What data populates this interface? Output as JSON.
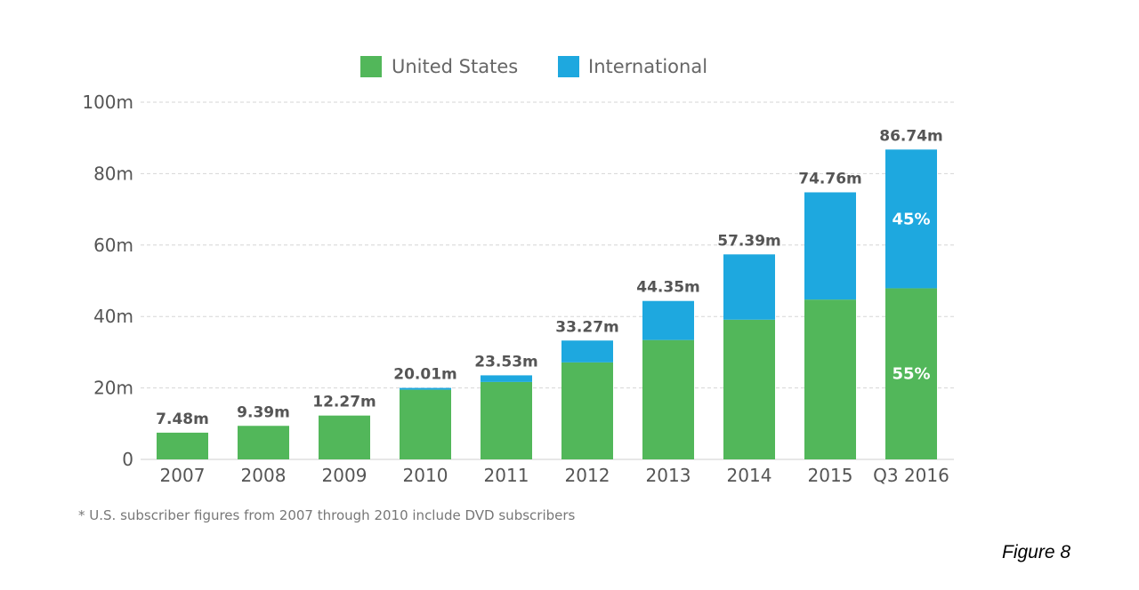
{
  "chart_data": {
    "type": "bar",
    "stacked": true,
    "categories": [
      "2007",
      "2008",
      "2009",
      "2010",
      "2011",
      "2012",
      "2013",
      "2014",
      "2015",
      "Q3 2016"
    ],
    "series": [
      {
        "name": "United States",
        "color": "#52b75a",
        "values": [
          7.48,
          9.39,
          12.27,
          19.5,
          21.67,
          27.15,
          33.42,
          39.11,
          44.74,
          47.9
        ]
      },
      {
        "name": "International",
        "color": "#1ea8df",
        "values": [
          0,
          0,
          0,
          0.51,
          1.86,
          6.12,
          10.93,
          18.28,
          30.02,
          38.84
        ]
      }
    ],
    "totals": [
      7.48,
      9.39,
      12.27,
      20.01,
      23.53,
      33.27,
      44.35,
      57.39,
      74.76,
      86.74
    ],
    "total_labels": [
      "7.48m",
      "9.39m",
      "12.27m",
      "20.01m",
      "23.53m",
      "33.27m",
      "44.35m",
      "57.39m",
      "74.76m",
      "86.74m"
    ],
    "pct_labels": {
      "category": "Q3 2016",
      "international": "45%",
      "united_states": "55%"
    },
    "yticks": [
      0,
      20,
      40,
      60,
      80,
      100
    ],
    "ytick_labels": [
      "0",
      "20m",
      "40m",
      "60m",
      "80m",
      "100m"
    ],
    "ylim": [
      0,
      100
    ],
    "grid": true,
    "legend": "top-center",
    "title": "",
    "xlabel": "",
    "ylabel": ""
  },
  "legend": {
    "us_label": "United States",
    "intl_label": "International"
  },
  "footnote": "* U.S. subscriber figures from 2007 through 2010 include DVD subscribers",
  "figure_caption": "Figure 8"
}
